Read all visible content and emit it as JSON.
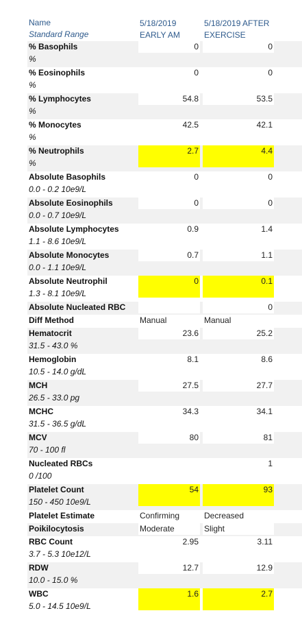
{
  "header": {
    "col_name": "Name",
    "col_range": "Standard Range",
    "col2_line1": "5/18/2019",
    "col2_line2": "EARLY AM",
    "col3_line1": "5/18/2019 AFTER",
    "col3_line2": "EXERCISE"
  },
  "rows": [
    {
      "name": "% Basophils",
      "range": "%",
      "v1": "0",
      "v2": "0",
      "hl": false,
      "type": "num"
    },
    {
      "name": "% Eosinophils",
      "range": "%",
      "v1": "0",
      "v2": "0",
      "hl": false,
      "type": "num"
    },
    {
      "name": "% Lymphocytes",
      "range": "%",
      "v1": "54.8",
      "v2": "53.5",
      "hl": false,
      "type": "num"
    },
    {
      "name": "% Monocytes",
      "range": "%",
      "v1": "42.5",
      "v2": "42.1",
      "hl": false,
      "type": "num"
    },
    {
      "name": "% Neutrophils",
      "range": "%",
      "v1": "2.7",
      "v2": "4.4",
      "hl": true,
      "type": "num"
    },
    {
      "name": "Absolute Basophils",
      "range": "0.0 - 0.2 10e9/L",
      "v1": "0",
      "v2": "0",
      "hl": false,
      "type": "num"
    },
    {
      "name": "Absolute Eosinophils",
      "range": "0.0 - 0.7 10e9/L",
      "v1": "0",
      "v2": "0",
      "hl": false,
      "type": "num"
    },
    {
      "name": "Absolute Lymphocytes",
      "range": "1.1 - 8.6 10e9/L",
      "v1": "0.9",
      "v2": "1.4",
      "hl": false,
      "type": "num"
    },
    {
      "name": "Absolute Monocytes",
      "range": "0.0 - 1.1 10e9/L",
      "v1": "0.7",
      "v2": "1.1",
      "hl": false,
      "type": "num"
    },
    {
      "name": "Absolute Neutrophil",
      "range": "1.3 - 8.1 10e9/L",
      "v1": "0",
      "v2": "0.1",
      "hl": true,
      "type": "num"
    },
    {
      "name": "Absolute Nucleated RBC",
      "range": "",
      "v1": "",
      "v2": "0",
      "hl": false,
      "type": "num"
    },
    {
      "name": "Diff Method",
      "range": "",
      "v1": "Manual",
      "v2": "Manual",
      "hl": false,
      "type": "txt"
    },
    {
      "name": "Hematocrit",
      "range": "31.5 - 43.0 %",
      "v1": "23.6",
      "v2": "25.2",
      "hl": false,
      "type": "num"
    },
    {
      "name": "Hemoglobin",
      "range": "10.5 - 14.0 g/dL",
      "v1": "8.1",
      "v2": "8.6",
      "hl": false,
      "type": "num"
    },
    {
      "name": "MCH",
      "range": "26.5 - 33.0 pg",
      "v1": "27.5",
      "v2": "27.7",
      "hl": false,
      "type": "num"
    },
    {
      "name": "MCHC",
      "range": "31.5 - 36.5 g/dL",
      "v1": "34.3",
      "v2": "34.1",
      "hl": false,
      "type": "num"
    },
    {
      "name": "MCV",
      "range": "70 - 100 fl",
      "v1": "80",
      "v2": "81",
      "hl": false,
      "type": "num"
    },
    {
      "name": "Nucleated RBCs",
      "range": "0 /100",
      "v1": "",
      "v2": "1",
      "hl": false,
      "type": "num"
    },
    {
      "name": "Platelet Count",
      "range": "150 - 450 10e9/L",
      "v1": "54",
      "v2": "93",
      "hl": true,
      "type": "num"
    },
    {
      "name": "Platelet Estimate",
      "range": "",
      "v1": "Confirming",
      "v2": "Decreased",
      "hl": false,
      "type": "txt"
    },
    {
      "name": "Poikilocytosis",
      "range": "",
      "v1": "Moderate",
      "v2": "Slight",
      "hl": false,
      "type": "txt"
    },
    {
      "name": "RBC Count",
      "range": "3.7 - 5.3 10e12/L",
      "v1": "2.95",
      "v2": "3.11",
      "hl": false,
      "type": "num"
    },
    {
      "name": "RDW",
      "range": "10.0 - 15.0 %",
      "v1": "12.7",
      "v2": "12.9",
      "hl": false,
      "type": "num"
    },
    {
      "name": "WBC",
      "range": "5.0 - 14.5 10e9/L",
      "v1": "1.6",
      "v2": "2.7",
      "hl": true,
      "type": "num"
    }
  ],
  "colors": {
    "header_text": "#2e5a8c",
    "highlight": "#ffff00",
    "row_shade": "#f1f1f1"
  }
}
